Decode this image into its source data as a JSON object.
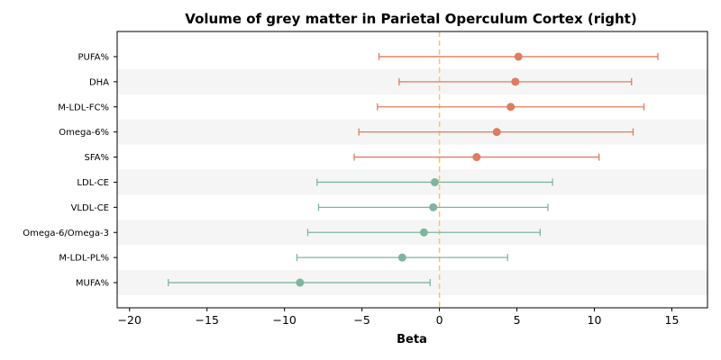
{
  "chart_data": {
    "type": "forest",
    "title": "Volume of grey matter in Parietal Operculum Cortex (right)",
    "xlabel": "Beta",
    "ylabel": "",
    "xlim": [
      -20.8,
      17.3
    ],
    "xticks": [
      -20,
      -15,
      -10,
      -5,
      0,
      5,
      10,
      15
    ],
    "xtick_labels": [
      "−20",
      "−15",
      "−10",
      "−5",
      "0",
      "5",
      "10",
      "15"
    ],
    "reference_line": {
      "x": 0,
      "style": "dashed",
      "color": "#f5c76b"
    },
    "band_color": "#f5f5f5",
    "rows": [
      {
        "label": "PUFA%",
        "beta": 5.1,
        "ci_low": -3.9,
        "ci_high": 14.1,
        "color": "#e07b5e"
      },
      {
        "label": "DHA",
        "beta": 4.9,
        "ci_low": -2.6,
        "ci_high": 12.4,
        "color": "#e07b5e"
      },
      {
        "label": "M-LDL-FC%",
        "beta": 4.6,
        "ci_low": -4.0,
        "ci_high": 13.2,
        "color": "#e07b5e"
      },
      {
        "label": "Omega-6%",
        "beta": 3.7,
        "ci_low": -5.2,
        "ci_high": 12.5,
        "color": "#e07b5e"
      },
      {
        "label": "SFA%",
        "beta": 2.4,
        "ci_low": -5.5,
        "ci_high": 10.3,
        "color": "#e07b5e"
      },
      {
        "label": "LDL-CE",
        "beta": -0.3,
        "ci_low": -7.9,
        "ci_high": 7.3,
        "color": "#7fb59e"
      },
      {
        "label": "VLDL-CE",
        "beta": -0.4,
        "ci_low": -7.8,
        "ci_high": 7.0,
        "color": "#7fb59e"
      },
      {
        "label": "Omega-6/Omega-3",
        "beta": -1.0,
        "ci_low": -8.5,
        "ci_high": 6.5,
        "color": "#7fb59e"
      },
      {
        "label": "M-LDL-PL%",
        "beta": -2.4,
        "ci_low": -9.2,
        "ci_high": 4.4,
        "color": "#7fb59e"
      },
      {
        "label": "MUFA%",
        "beta": -9.0,
        "ci_low": -17.5,
        "ci_high": -0.6,
        "color": "#7fb59e"
      }
    ]
  }
}
